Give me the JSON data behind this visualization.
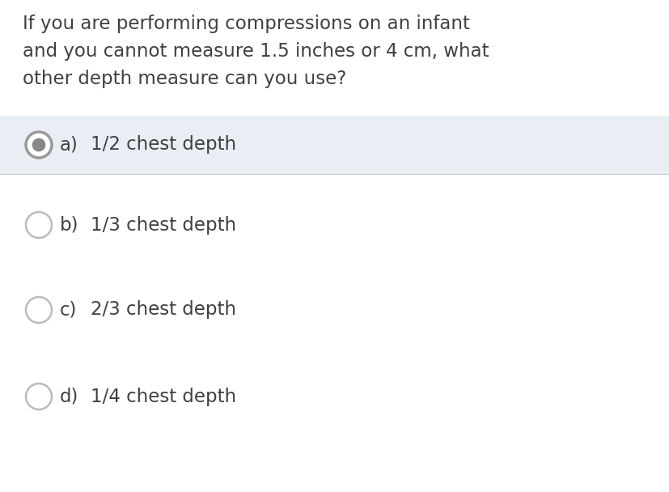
{
  "question_lines": [
    "If you are performing compressions on an infant",
    "and you cannot measure 1.5 inches or 4 cm, what",
    "other depth measure can you use?"
  ],
  "options": [
    {
      "label": "a)",
      "text": "1/2 chest depth",
      "selected": true
    },
    {
      "label": "b)",
      "text": "1/3 chest depth",
      "selected": false
    },
    {
      "label": "c)",
      "text": "2/3 chest depth",
      "selected": false
    },
    {
      "label": "d)",
      "text": "1/4 chest depth",
      "selected": false
    }
  ],
  "bg_color": "#ffffff",
  "selected_bg_color": "#e8eef4",
  "question_color": "#404040",
  "option_text_color": "#404040",
  "circle_edge_color": "#bbbbbb",
  "selected_circle_outer_edge": "#999999",
  "selected_circle_inner_fill": "#888888",
  "unselected_circle_fill": "#ffffff",
  "separator_color": "#cccccc",
  "question_fontsize": 16.5,
  "option_fontsize": 16.5,
  "label_fontsize": 16.5
}
